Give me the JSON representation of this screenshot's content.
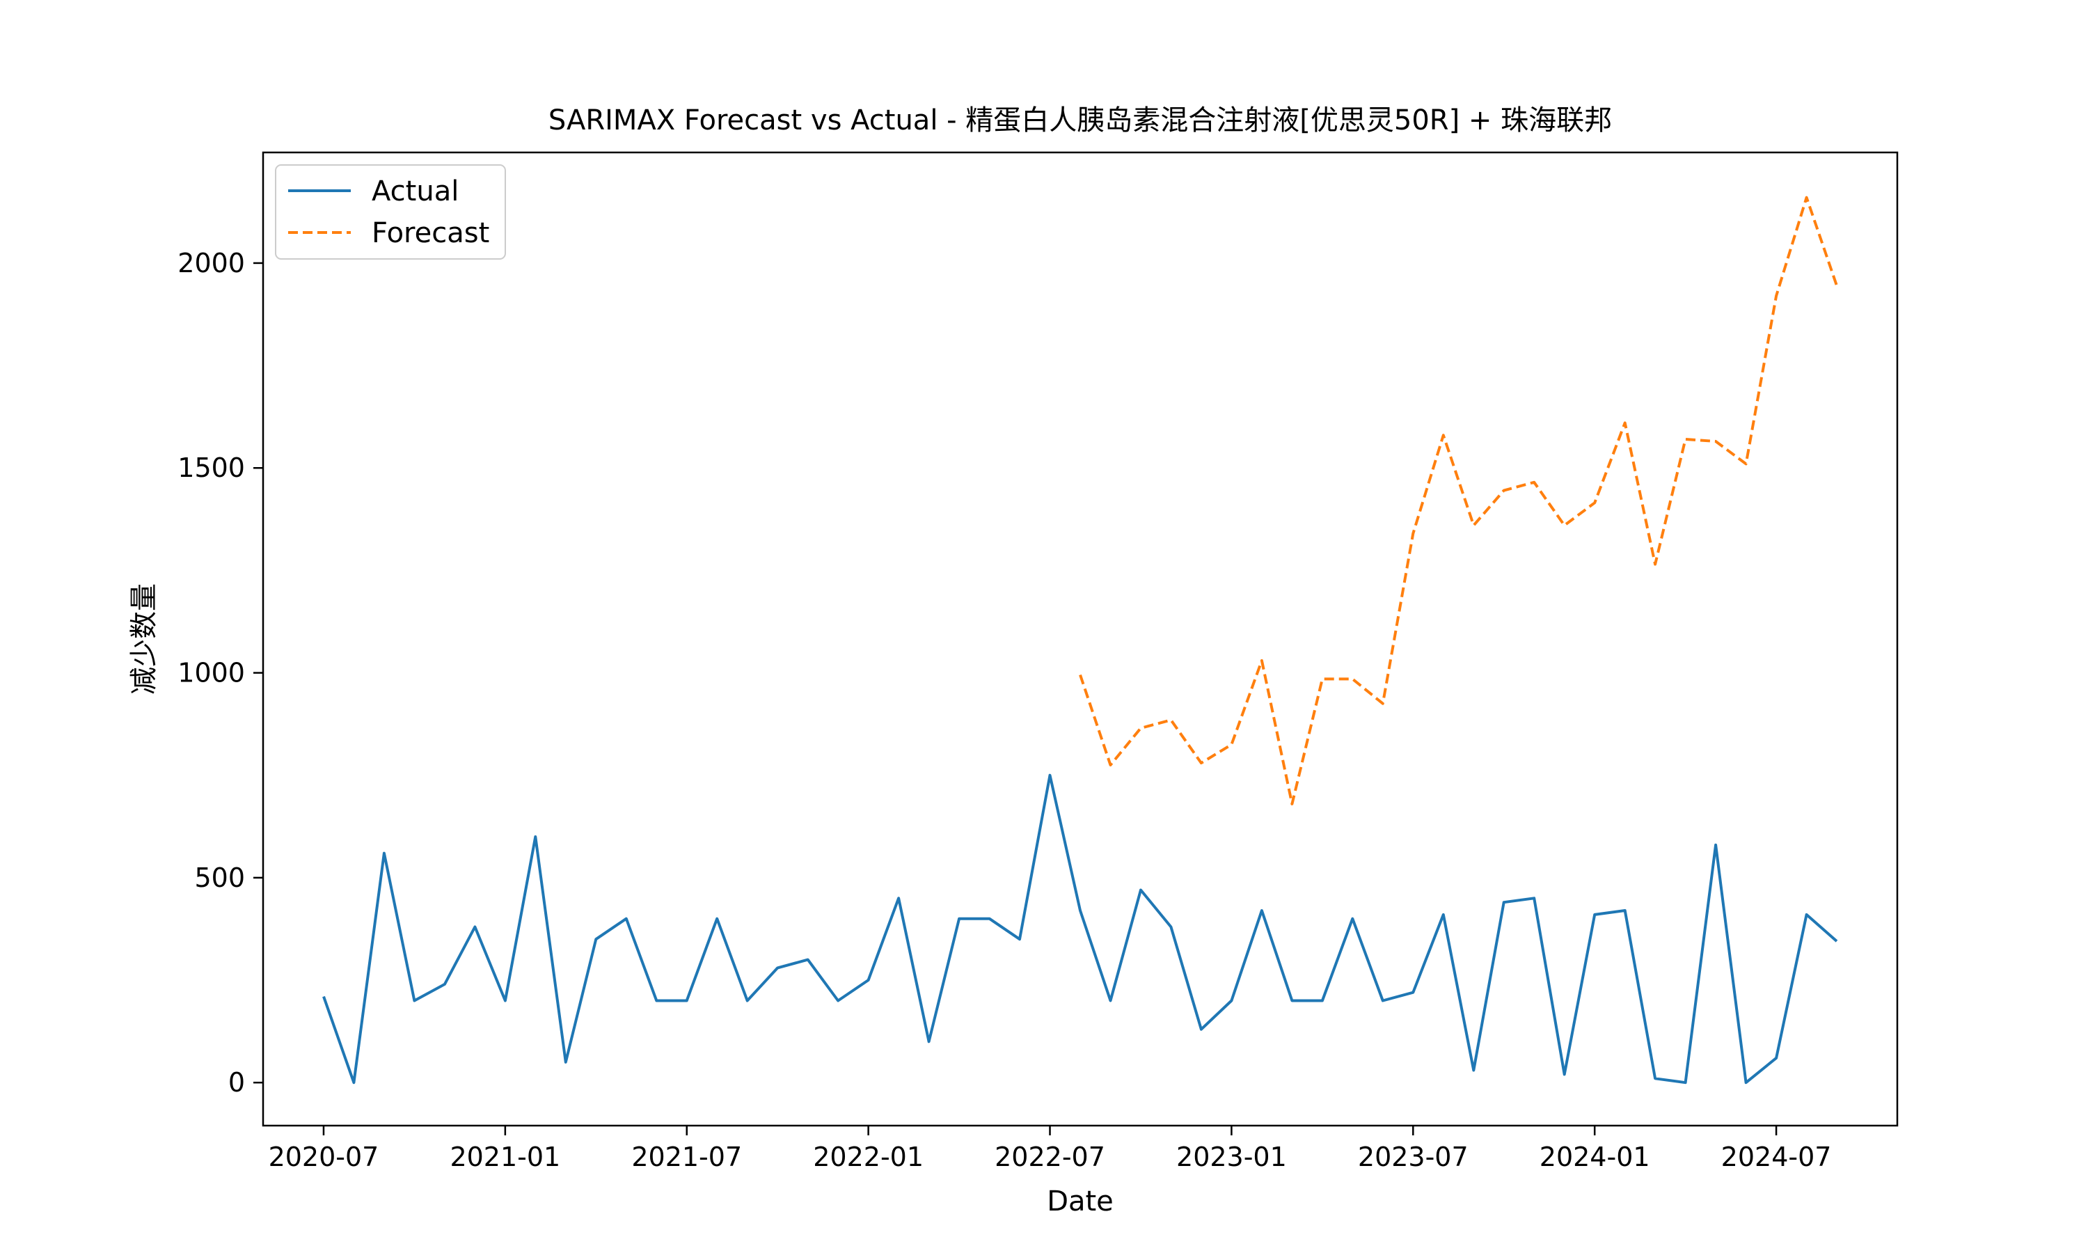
{
  "chart_data": {
    "type": "line",
    "title": "SARIMAX Forecast vs Actual - 精蛋白人胰岛素混合注射液[优思灵50R] + 珠海联邦",
    "xlabel": "Date",
    "ylabel": "减少数量",
    "xlim": [
      "2020-05",
      "2024-11"
    ],
    "ylim": [
      -105,
      2270
    ],
    "x_ticks": [
      "2020-07",
      "2021-01",
      "2021-07",
      "2022-01",
      "2022-07",
      "2023-01",
      "2023-07",
      "2024-01",
      "2024-07"
    ],
    "y_ticks": [
      0,
      500,
      1000,
      1500,
      2000
    ],
    "grid": false,
    "legend_position": "top-left",
    "series": [
      {
        "name": "Actual",
        "color": "#1f77b4",
        "style": "solid",
        "x": [
          "2020-07",
          "2020-08",
          "2020-09",
          "2020-10",
          "2020-11",
          "2020-12",
          "2021-01",
          "2021-02",
          "2021-03",
          "2021-04",
          "2021-05",
          "2021-06",
          "2021-07",
          "2021-08",
          "2021-09",
          "2021-10",
          "2021-11",
          "2021-12",
          "2022-01",
          "2022-02",
          "2022-03",
          "2022-04",
          "2022-05",
          "2022-06",
          "2022-07",
          "2022-08",
          "2022-09",
          "2022-10",
          "2022-11",
          "2022-12",
          "2023-01",
          "2023-02",
          "2023-03",
          "2023-04",
          "2023-05",
          "2023-06",
          "2023-07",
          "2023-08",
          "2023-09",
          "2023-10",
          "2023-11",
          "2023-12",
          "2024-01",
          "2024-02",
          "2024-03",
          "2024-04",
          "2024-05",
          "2024-06",
          "2024-07",
          "2024-08",
          "2024-09"
        ],
        "values": [
          210,
          0,
          560,
          200,
          240,
          380,
          200,
          600,
          50,
          350,
          400,
          200,
          200,
          400,
          200,
          280,
          300,
          200,
          250,
          450,
          100,
          400,
          400,
          350,
          750,
          420,
          200,
          470,
          380,
          130,
          200,
          420,
          200,
          200,
          400,
          200,
          220,
          410,
          30,
          440,
          450,
          20,
          410,
          420,
          10,
          0,
          580,
          0,
          60,
          410,
          345
        ]
      },
      {
        "name": "Forecast",
        "color": "#ff7f0e",
        "style": "dashed",
        "x": [
          "2022-08",
          "2022-09",
          "2022-10",
          "2022-11",
          "2022-12",
          "2023-01",
          "2023-02",
          "2023-03",
          "2023-04",
          "2023-05",
          "2023-06",
          "2023-07",
          "2023-08",
          "2023-09",
          "2023-10",
          "2023-11",
          "2023-12",
          "2024-01",
          "2024-02",
          "2024-03",
          "2024-04",
          "2024-05",
          "2024-06",
          "2024-07",
          "2024-08",
          "2024-09"
        ],
        "values": [
          995,
          775,
          865,
          885,
          780,
          825,
          1030,
          680,
          985,
          985,
          925,
          1340,
          1580,
          1360,
          1445,
          1465,
          1360,
          1415,
          1610,
          1265,
          1570,
          1565,
          1510,
          1920,
          2160,
          1945
        ]
      }
    ]
  }
}
